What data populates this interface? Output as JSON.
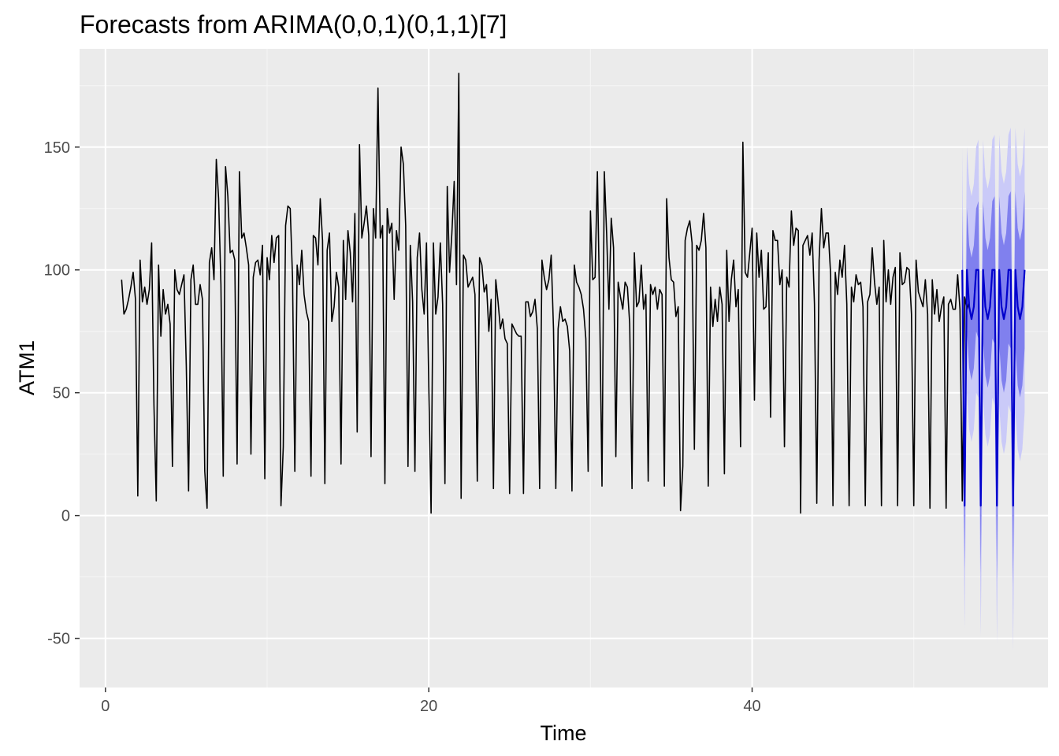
{
  "chart_data": {
    "type": "line",
    "title": "Forecasts from ARIMA(0,0,1)(0,1,1)[7]",
    "xlabel": "Time",
    "ylabel": "ATM1",
    "xlim": [
      -1.6,
      58.3
    ],
    "ylim": [
      -70,
      190
    ],
    "x_ticks": [
      0,
      20,
      40
    ],
    "y_ticks": [
      -50,
      0,
      50,
      100,
      150
    ],
    "grid": true,
    "legend": "none",
    "colors": {
      "panel_background": "#ebebeb",
      "grid_major": "#ffffff",
      "grid_minor": "#f6f6f6",
      "observed_line": "#000000",
      "forecast_line": "#0000cc",
      "interval_80": "#8080ee",
      "interval_95": "#cacaf8"
    },
    "series": [
      {
        "kind": "observed",
        "start": 1.0,
        "frequency": 7,
        "values": [
          96,
          82,
          84,
          88,
          93,
          99,
          88,
          8,
          104,
          87,
          93,
          86,
          92,
          111,
          45,
          6,
          102,
          73,
          92,
          82,
          86,
          78,
          20,
          100,
          92,
          90,
          94,
          98,
          61,
          10,
          96,
          102,
          86,
          86,
          94,
          88,
          18,
          3,
          103,
          109,
          96,
          145,
          129,
          94,
          16,
          142,
          130,
          107,
          108,
          104,
          21,
          140,
          113,
          115,
          109,
          102,
          25,
          97,
          103,
          104,
          98,
          110,
          15,
          105,
          96,
          114,
          103,
          113,
          114,
          4,
          28,
          118,
          126,
          125,
          97,
          18,
          102,
          94,
          108,
          90,
          83,
          79,
          16,
          114,
          113,
          102,
          129,
          112,
          13,
          108,
          115,
          79,
          85,
          99,
          93,
          21,
          112,
          88,
          116,
          107,
          87,
          123,
          34,
          151,
          113,
          119,
          126,
          114,
          24,
          125,
          113,
          174,
          113,
          118,
          13,
          125,
          115,
          119,
          88,
          116,
          108,
          150,
          143,
          118,
          20,
          110,
          87,
          18,
          105,
          115,
          92,
          82,
          111,
          53,
          1,
          111,
          82,
          89,
          111,
          86,
          13,
          134,
          99,
          115,
          136,
          94,
          180,
          7,
          106,
          104,
          93,
          95,
          97,
          90,
          14,
          105,
          102,
          91,
          94,
          75,
          88,
          11,
          96,
          87,
          76,
          80,
          72,
          70,
          9,
          78,
          76,
          74,
          73,
          73,
          9,
          87,
          87,
          81,
          83,
          88,
          76,
          11,
          104,
          97,
          92,
          96,
          106,
          76,
          11,
          76,
          85,
          79,
          80,
          77,
          67,
          10,
          102,
          95,
          93,
          90,
          84,
          72,
          18,
          124,
          96,
          97,
          140,
          84,
          12,
          140,
          115,
          84,
          121,
          109,
          24,
          95,
          89,
          84,
          95,
          93,
          78,
          11,
          107,
          85,
          87,
          102,
          84,
          90,
          14,
          94,
          90,
          93,
          84,
          92,
          90,
          12,
          129,
          105,
          96,
          95,
          81,
          85,
          2,
          20,
          112,
          117,
          120,
          111,
          27,
          110,
          108,
          112,
          123,
          109,
          12,
          93,
          77,
          88,
          79,
          93,
          86,
          17,
          108,
          79,
          96,
          104,
          85,
          92,
          28,
          152,
          99,
          97,
          107,
          117,
          47,
          115,
          97,
          108,
          84,
          85,
          107,
          40,
          116,
          112,
          112,
          94,
          100,
          28,
          97,
          93,
          124,
          110,
          117,
          116,
          1,
          110,
          112,
          114,
          106,
          115,
          86,
          5,
          104,
          125,
          109,
          115,
          115,
          98,
          4,
          99,
          90,
          104,
          97,
          110,
          86,
          4,
          93,
          87,
          98,
          94,
          95,
          85,
          4,
          87,
          90,
          109,
          95,
          86,
          93,
          4,
          112,
          87,
          100,
          86,
          97,
          101,
          4,
          107,
          94,
          95,
          101,
          100,
          82,
          4,
          104,
          91,
          88,
          85,
          96,
          82,
          3,
          96,
          82,
          92,
          79,
          85,
          89,
          3,
          86,
          88,
          84,
          84,
          98,
          84,
          6,
          89,
          84,
          87
        ]
      },
      {
        "kind": "forecast",
        "start": 53.0,
        "frequency": 7,
        "values": [
          100,
          4,
          100,
          85,
          80,
          85,
          100,
          100,
          4,
          100,
          85,
          80,
          85,
          100,
          100,
          4,
          100,
          85,
          80,
          85,
          100,
          100,
          4,
          100,
          85,
          80,
          85,
          100
        ],
        "lower80": [
          75,
          -22,
          75,
          60,
          55,
          60,
          75,
          72,
          -24,
          72,
          57,
          52,
          57,
          72,
          70,
          -26,
          70,
          55,
          50,
          55,
          70,
          68,
          -28,
          68,
          53,
          48,
          53,
          68
        ],
        "upper80": [
          125,
          30,
          125,
          110,
          105,
          110,
          125,
          128,
          32,
          128,
          113,
          108,
          113,
          128,
          130,
          34,
          130,
          115,
          110,
          115,
          130,
          132,
          36,
          132,
          117,
          112,
          117,
          132
        ],
        "lower95": [
          50,
          -46,
          50,
          35,
          30,
          35,
          50,
          48,
          -49,
          48,
          33,
          28,
          33,
          48,
          45,
          -52,
          45,
          30,
          25,
          30,
          45,
          42,
          -55,
          42,
          27,
          22,
          27,
          42
        ],
        "upper95": [
          150,
          54,
          150,
          135,
          130,
          135,
          150,
          153,
          57,
          153,
          138,
          133,
          138,
          153,
          155,
          60,
          155,
          140,
          135,
          140,
          155,
          158,
          63,
          158,
          143,
          138,
          143,
          158
        ]
      }
    ]
  }
}
